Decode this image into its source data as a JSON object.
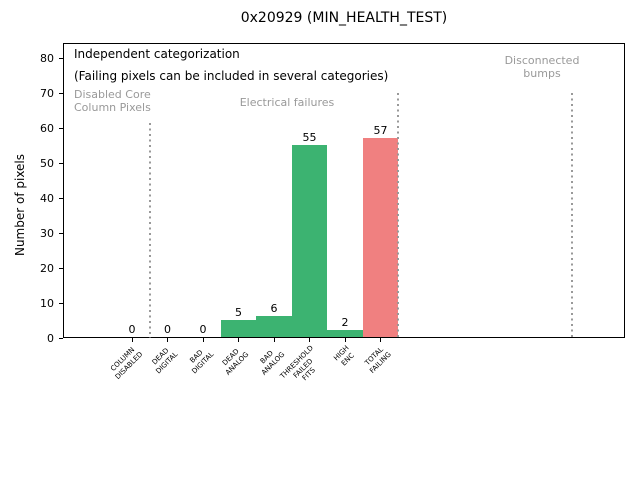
{
  "chart_data": {
    "type": "bar",
    "title": "0x20929 (MIN_HEALTH_TEST)",
    "xlabel": "",
    "ylabel": "Number of pixels",
    "ylim": [
      0,
      85
    ],
    "yticks": [
      0,
      10,
      20,
      30,
      40,
      50,
      60,
      70,
      80
    ],
    "grid": false,
    "legend": false,
    "categories": [
      "COLUMN\nDISABLED",
      "DEAD\nDIGITAL",
      "BAD\nDIGITAL",
      "DEAD\nANALOG",
      "BAD\nANALOG",
      "THRESHOLD\nFAILED\nFITS",
      "HIGH\nENC",
      "TOTAL\nFAILING"
    ],
    "values": [
      0,
      0,
      0,
      5,
      6,
      55,
      2,
      57
    ],
    "value_labels": [
      "0",
      "0",
      "0",
      "5",
      "6",
      "55",
      "2",
      "57"
    ],
    "bar_colors": [
      "#3cb371",
      "#3cb371",
      "#3cb371",
      "#3cb371",
      "#3cb371",
      "#3cb371",
      "#3cb371",
      "#f08080"
    ],
    "annotations": [
      {
        "text": "Independent categorization",
        "color": "#000000"
      },
      {
        "text": "(Failing pixels can be included in several categories)",
        "color": "#000000"
      },
      {
        "text": "Disabled Core\nColumn Pixels",
        "color": "#999999",
        "region": "left"
      },
      {
        "text": "Electrical failures",
        "color": "#999999",
        "region": "middle"
      },
      {
        "text": "Disconnected\nbumps",
        "color": "#999999",
        "region": "right"
      }
    ],
    "separators": {
      "style": "dotted",
      "color": "#999999",
      "count": 3
    }
  },
  "colors": {
    "bar_green": "#3cb371",
    "bar_red": "#f08080",
    "muted_text": "#999999",
    "axis": "#000000"
  }
}
